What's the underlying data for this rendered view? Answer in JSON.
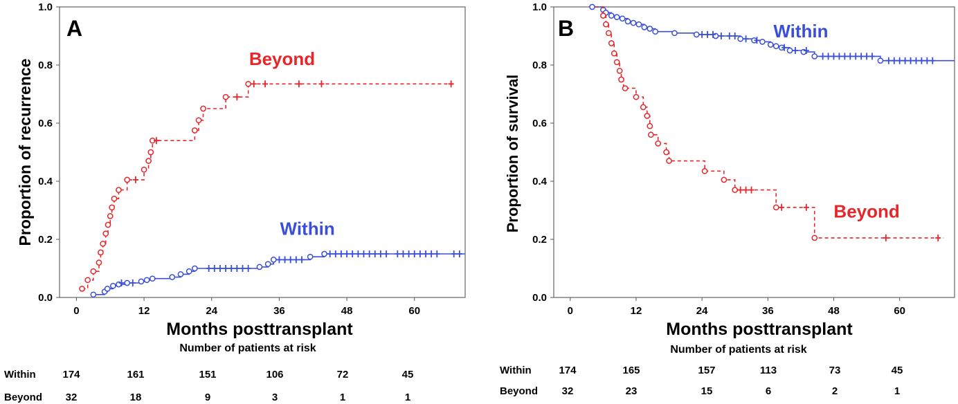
{
  "chart_data": [
    {
      "type": "line",
      "panel": "A",
      "ylabel": "Proportion of recurrence",
      "xlabel": "Months posttransplant",
      "xlim": [
        -3,
        69
      ],
      "ylim": [
        0,
        1
      ],
      "xticks": [
        0,
        12,
        24,
        36,
        48,
        60
      ],
      "yticks": [
        0.0,
        0.2,
        0.4,
        0.6,
        0.8,
        1.0
      ],
      "ytick_labels": [
        "0.0",
        "0.2",
        "0.4",
        "0.6",
        "0.8",
        "1.0"
      ],
      "grid": false,
      "series": [
        {
          "name": "Beyond",
          "color": "#e8262a",
          "dash": true,
          "step_x": [
            1,
            2,
            3,
            4,
            4.3,
            4.7,
            5.2,
            5.6,
            6,
            6.3,
            6.7,
            7.5,
            9,
            12,
            12.8,
            13.2,
            13.5,
            21,
            21.7,
            22.5,
            23.5,
            26.5,
            28.5,
            30.5,
            67
          ],
          "step_y": [
            0.03,
            0.06,
            0.09,
            0.12,
            0.155,
            0.185,
            0.22,
            0.25,
            0.28,
            0.31,
            0.34,
            0.37,
            0.405,
            0.44,
            0.47,
            0.5,
            0.54,
            0.575,
            0.61,
            0.65,
            0.65,
            0.69,
            0.69,
            0.735,
            0.735
          ],
          "events_x": [
            1,
            2,
            3,
            4,
            4.3,
            4.7,
            5.2,
            5.6,
            6,
            6.3,
            6.7,
            7.5,
            9,
            12,
            12.8,
            13.2,
            13.5,
            21,
            21.7,
            22.5,
            26.5,
            30.5
          ],
          "events_y": [
            0.03,
            0.06,
            0.09,
            0.12,
            0.155,
            0.185,
            0.22,
            0.25,
            0.28,
            0.31,
            0.34,
            0.37,
            0.405,
            0.44,
            0.47,
            0.5,
            0.54,
            0.575,
            0.61,
            0.65,
            0.69,
            0.735
          ],
          "censor_x": [
            10.5,
            14.2,
            28.5,
            31.5,
            33.5,
            39.5,
            43.5,
            66.5
          ],
          "censor_y": [
            0.405,
            0.54,
            0.69,
            0.735,
            0.735,
            0.735,
            0.735,
            0.735
          ]
        },
        {
          "name": "Within",
          "color": "#3a4fd8",
          "dash": false,
          "step_x": [
            3,
            5,
            5.5,
            6.5,
            7.5,
            9,
            10,
            11.5,
            12.5,
            13.5,
            17,
            18.5,
            20,
            21,
            31,
            32.5,
            34,
            35,
            41.5,
            43.5,
            44,
            69
          ],
          "step_y": [
            0.01,
            0.02,
            0.03,
            0.04,
            0.045,
            0.05,
            0.05,
            0.055,
            0.06,
            0.065,
            0.07,
            0.08,
            0.09,
            0.1,
            0.1,
            0.105,
            0.115,
            0.13,
            0.14,
            0.14,
            0.15,
            0.15
          ],
          "events_x": [
            3,
            5,
            5.5,
            6.5,
            7.5,
            9,
            11.5,
            12.5,
            13.5,
            17,
            18.5,
            20,
            21,
            32.5,
            34,
            35,
            41.5,
            44
          ],
          "events_y": [
            0.01,
            0.02,
            0.03,
            0.04,
            0.045,
            0.05,
            0.055,
            0.06,
            0.065,
            0.07,
            0.08,
            0.09,
            0.1,
            0.105,
            0.115,
            0.13,
            0.14,
            0.15
          ],
          "censor_x": [
            8,
            10,
            23.5,
            24.5,
            25.5,
            26.5,
            27.5,
            28.5,
            29.5,
            30.5,
            36,
            37,
            38,
            39,
            40,
            45,
            46,
            47,
            48,
            49,
            50,
            51,
            52,
            53,
            54,
            55,
            57,
            58,
            59,
            60,
            61,
            62,
            63,
            64,
            67,
            68
          ],
          "censor_y": [
            0.05,
            0.05,
            0.1,
            0.1,
            0.1,
            0.1,
            0.1,
            0.1,
            0.1,
            0.1,
            0.13,
            0.13,
            0.13,
            0.13,
            0.13,
            0.15,
            0.15,
            0.15,
            0.15,
            0.15,
            0.15,
            0.15,
            0.15,
            0.15,
            0.15,
            0.15,
            0.15,
            0.15,
            0.15,
            0.15,
            0.15,
            0.15,
            0.15,
            0.15,
            0.15,
            0.15
          ]
        }
      ],
      "labels": [
        {
          "text": "Beyond",
          "color": "#e8262a",
          "x": 36.5,
          "y": 0.8
        },
        {
          "text": "Within",
          "color": "#3a4fd8",
          "x": 41,
          "y": 0.215
        }
      ],
      "risk_table": {
        "title": "Number of patients at risk",
        "rows": [
          {
            "label": "Within",
            "values": [
              "174",
              "161",
              "151",
              "106",
              "72",
              "45"
            ]
          },
          {
            "label": "Beyond",
            "values": [
              "32",
              "18",
              "9",
              "3",
              "1",
              "1"
            ]
          }
        ]
      }
    },
    {
      "type": "line",
      "panel": "B",
      "ylabel": "Proportion of survival",
      "xlabel": "Months posttransplant",
      "xlim": [
        -3,
        70
      ],
      "ylim": [
        0,
        1
      ],
      "xticks": [
        0,
        12,
        24,
        36,
        48,
        60
      ],
      "yticks": [
        0.0,
        0.2,
        0.4,
        0.6,
        0.8,
        1.0
      ],
      "ytick_labels": [
        "0.0",
        "0.2",
        "0.4",
        "0.6",
        "0.8",
        "1.0"
      ],
      "grid": false,
      "series": [
        {
          "name": "Within",
          "color": "#3a4fd8",
          "dash": false,
          "step_x": [
            4,
            6,
            6.5,
            7.5,
            8.5,
            9.5,
            10.5,
            11.5,
            12.5,
            13.5,
            14.5,
            15.5,
            19,
            23,
            26.5,
            31,
            33.5,
            35,
            36.5,
            37.5,
            38.5,
            40,
            41.5,
            42.5,
            44.5,
            56.5,
            70
          ],
          "step_y": [
            1.0,
            0.99,
            0.98,
            0.97,
            0.965,
            0.96,
            0.95,
            0.945,
            0.94,
            0.93,
            0.925,
            0.915,
            0.91,
            0.905,
            0.9,
            0.89,
            0.885,
            0.88,
            0.87,
            0.865,
            0.86,
            0.85,
            0.85,
            0.845,
            0.83,
            0.815,
            0.815
          ],
          "events_x": [
            4,
            6,
            6.5,
            7.5,
            8.5,
            9.5,
            10.5,
            11.5,
            12.5,
            13.5,
            14.5,
            15.5,
            19,
            23,
            26.5,
            31,
            33.5,
            35,
            36.5,
            37.5,
            38.5,
            40,
            42.5,
            44.5,
            56.5
          ],
          "events_y": [
            1.0,
            0.99,
            0.98,
            0.97,
            0.965,
            0.96,
            0.95,
            0.945,
            0.94,
            0.93,
            0.925,
            0.915,
            0.91,
            0.905,
            0.9,
            0.89,
            0.885,
            0.88,
            0.87,
            0.865,
            0.86,
            0.85,
            0.845,
            0.83,
            0.815
          ],
          "censor_x": [
            24,
            25,
            26,
            27.5,
            29,
            30,
            32,
            34,
            39,
            41,
            43,
            46,
            47,
            48,
            49,
            50,
            51,
            52,
            53,
            54,
            55,
            58,
            59,
            60,
            61,
            62,
            63,
            64,
            65,
            66
          ],
          "censor_y": [
            0.905,
            0.905,
            0.905,
            0.9,
            0.9,
            0.9,
            0.89,
            0.885,
            0.86,
            0.85,
            0.85,
            0.83,
            0.83,
            0.83,
            0.83,
            0.83,
            0.83,
            0.83,
            0.83,
            0.83,
            0.83,
            0.815,
            0.815,
            0.815,
            0.815,
            0.815,
            0.815,
            0.815,
            0.815,
            0.815
          ]
        },
        {
          "name": "Beyond",
          "color": "#e8262a",
          "dash": true,
          "step_x": [
            4.5,
            6,
            6.5,
            7,
            7.5,
            8,
            8.5,
            9,
            9.3,
            9.7,
            10,
            10.3,
            12,
            13.3,
            14,
            14.5,
            14.7,
            15.3,
            16,
            17.5,
            18,
            24.5,
            28,
            30,
            36,
            37.5,
            44.5,
            68
          ],
          "step_y": [
            1.0,
            0.97,
            0.94,
            0.91,
            0.875,
            0.84,
            0.81,
            0.78,
            0.75,
            0.72,
            0.72,
            0.72,
            0.69,
            0.655,
            0.625,
            0.59,
            0.56,
            0.56,
            0.53,
            0.5,
            0.47,
            0.435,
            0.405,
            0.37,
            0.37,
            0.31,
            0.205,
            0.205
          ],
          "events_x": [
            6,
            6.5,
            7,
            7.5,
            8,
            8.5,
            9,
            9.3,
            10,
            12,
            13.3,
            14,
            14.5,
            14.7,
            16,
            17.5,
            18,
            24.5,
            28,
            30,
            37.5,
            44.5
          ],
          "events_y": [
            0.97,
            0.94,
            0.91,
            0.875,
            0.84,
            0.81,
            0.78,
            0.75,
            0.72,
            0.69,
            0.655,
            0.625,
            0.59,
            0.56,
            0.53,
            0.5,
            0.47,
            0.435,
            0.405,
            0.37,
            0.31,
            0.205
          ],
          "censor_x": [
            31,
            32,
            33,
            38.5,
            43,
            57.5,
            67
          ],
          "censor_y": [
            0.37,
            0.37,
            0.37,
            0.31,
            0.31,
            0.205,
            0.205
          ]
        }
      ],
      "labels": [
        {
          "text": "Within",
          "color": "#3a4fd8",
          "x": 42,
          "y": 0.895
        },
        {
          "text": "Beyond",
          "color": "#e8262a",
          "x": 54,
          "y": 0.275
        }
      ],
      "risk_table": {
        "title": "Number of patients at risk",
        "rows": [
          {
            "label": "Within",
            "values": [
              "174",
              "165",
              "157",
              "113",
              "73",
              "45"
            ]
          },
          {
            "label": "Beyond",
            "values": [
              "32",
              "23",
              "15",
              "6",
              "2",
              "1"
            ]
          }
        ]
      }
    }
  ]
}
